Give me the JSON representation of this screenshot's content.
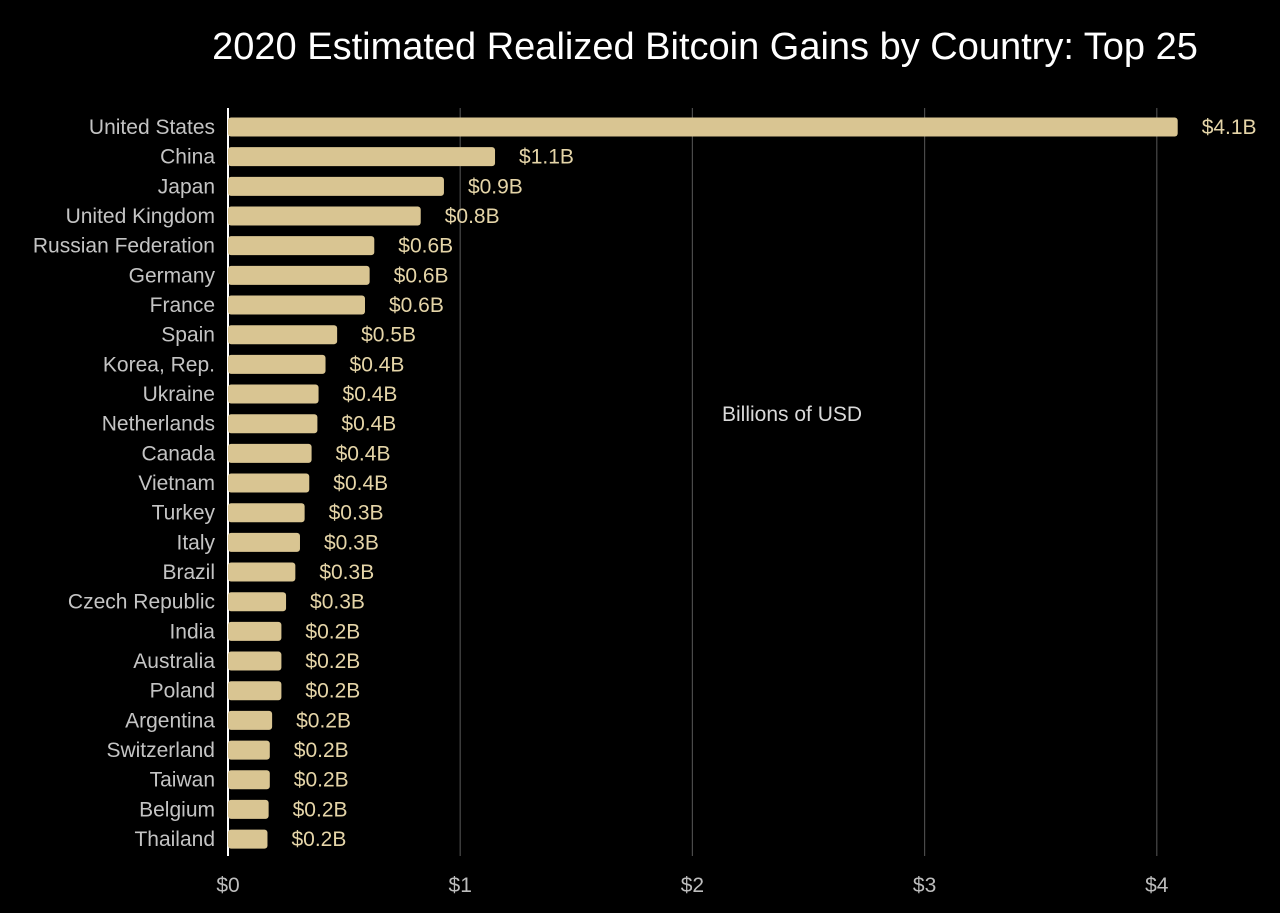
{
  "chart_data": {
    "type": "bar",
    "orientation": "horizontal",
    "title": "2020 Estimated Realized Bitcoin Gains by Country: Top 25",
    "annotation": "Billions of USD",
    "xlim": [
      0,
      4.2
    ],
    "x_ticks": [
      {
        "value": 0,
        "label": "$0"
      },
      {
        "value": 1,
        "label": "$1"
      },
      {
        "value": 2,
        "label": "$2"
      },
      {
        "value": 3,
        "label": "$3"
      },
      {
        "value": 4,
        "label": "$4"
      }
    ],
    "grid": true,
    "bar_color": "#d9c592",
    "categories": [
      "United States",
      "China",
      "Japan",
      "United Kingdom",
      "Russian Federation",
      "Germany",
      "France",
      "Spain",
      "Korea, Rep.",
      "Ukraine",
      "Netherlands",
      "Canada",
      "Vietnam",
      "Turkey",
      "Italy",
      "Brazil",
      "Czech Republic",
      "India",
      "Australia",
      "Poland",
      "Argentina",
      "Switzerland",
      "Taiwan",
      "Belgium",
      "Thailand"
    ],
    "values": [
      4.09,
      1.15,
      0.93,
      0.83,
      0.63,
      0.61,
      0.59,
      0.47,
      0.42,
      0.39,
      0.385,
      0.36,
      0.35,
      0.33,
      0.31,
      0.29,
      0.25,
      0.23,
      0.23,
      0.23,
      0.19,
      0.18,
      0.18,
      0.175,
      0.17
    ],
    "value_labels": [
      "$4.1B",
      "$1.1B",
      "$0.9B",
      "$0.8B",
      "$0.6B",
      "$0.6B",
      "$0.6B",
      "$0.5B",
      "$0.4B",
      "$0.4B",
      "$0.4B",
      "$0.4B",
      "$0.4B",
      "$0.3B",
      "$0.3B",
      "$0.3B",
      "$0.3B",
      "$0.2B",
      "$0.2B",
      "$0.2B",
      "$0.2B",
      "$0.2B",
      "$0.2B",
      "$0.2B",
      "$0.2B"
    ]
  }
}
